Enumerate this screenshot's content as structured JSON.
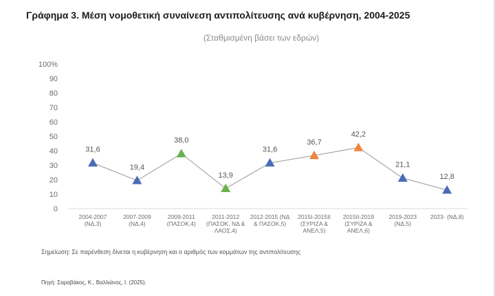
{
  "chart_data": {
    "type": "line",
    "title": "Γράφημα 3. Μέση νομοθετική συναίνεση αντιπολίτευσης ανά κυβέρνηση, 2004-2025",
    "subtitle": "(Σταθμισμένη βάσει των εδρών)",
    "y_ticks": [
      "0",
      "10",
      "20",
      "30",
      "40",
      "50",
      "60",
      "70",
      "80",
      "90",
      "100%"
    ],
    "ylim": [
      0,
      100
    ],
    "grid": false,
    "categories": [
      [
        "2004-2007",
        "(ΝΔ,3)"
      ],
      [
        "2007-2009",
        "(ΝΔ,4)"
      ],
      [
        "2009-2011",
        "(ΠΑΣΟΚ,4)"
      ],
      [
        "2011-2012",
        "(ΠΑΣΟΚ, ΝΔ &",
        "ΛΑΟΣ,4)"
      ],
      [
        "2012-2015 (ΝΔ",
        "& ΠΑΣΟΚ,5)"
      ],
      [
        "2015Ι-2015ΙΙ",
        "(ΣΥΡΙΖΑ &",
        "ΑΝΕΛ,5)"
      ],
      [
        "2015ΙΙ-2019",
        "(ΣΥΡΙΖΑ &",
        "ΑΝΕΛ,6)"
      ],
      [
        "2019-2023",
        "(ΝΔ,5)"
      ],
      [
        "2023- (ΝΔ,8)"
      ]
    ],
    "values": [
      31.6,
      19.4,
      38.0,
      13.9,
      31.6,
      36.7,
      42.2,
      21.1,
      12.8
    ],
    "data_labels": [
      "31,6",
      "19,4",
      "38,0",
      "13,9",
      "31,6",
      "36,7",
      "42,2",
      "21,1",
      "12,8"
    ],
    "marker_colors": [
      "#4a6bb5",
      "#4a6bb5",
      "#6ab04c",
      "#6ab04c",
      "#4a6bb5",
      "#f0843c",
      "#f0843c",
      "#4a6bb5",
      "#4a6bb5"
    ],
    "line_color": "#a6a6a6",
    "marker_shape": "triangle"
  },
  "note": "Σημείωση: Σε παρένθεση δίνεται η κυβέρνηση και ο αριθμός των κομμάτων της αντιπολίτευσης",
  "source": "Πηγή: Σαραβάκος, Κ., Βαλλιάνος, Ι. (2025)."
}
